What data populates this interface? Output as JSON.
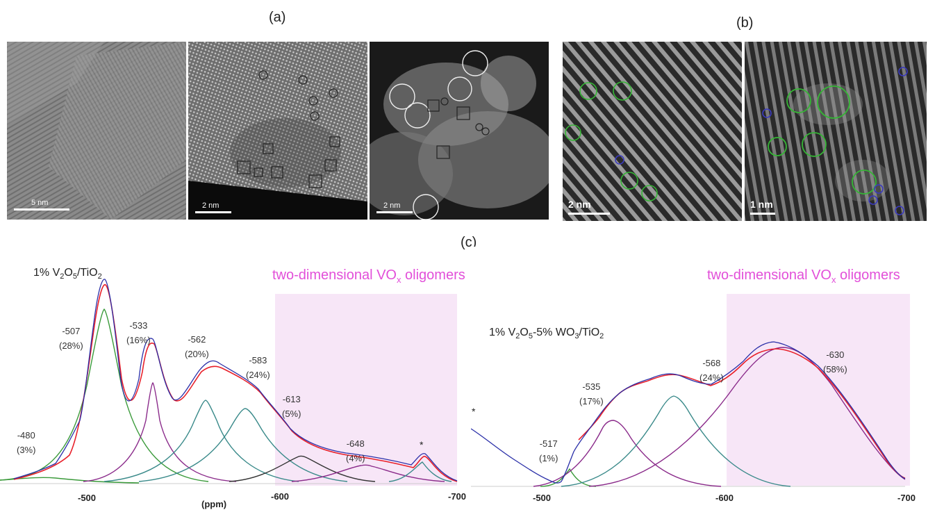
{
  "figure": {
    "panel_a_label": "(a)",
    "panel_b_label": "(b)",
    "panel_c_label": "(c)"
  },
  "panel_a": {
    "images": [
      {
        "name": "hrtem-image",
        "scalebar": "5 nm"
      },
      {
        "name": "haadf-image-1",
        "scalebar": "2 nm"
      },
      {
        "name": "haadf-image-2",
        "scalebar": "2 nm"
      }
    ]
  },
  "panel_b": {
    "images": [
      {
        "name": "haadf-image-3",
        "scalebar": "2 nm"
      },
      {
        "name": "haadf-image-4",
        "scalebar": "1 nm"
      }
    ]
  },
  "spectra": {
    "left": {
      "title_prefix": "1% V",
      "title_mid": "O",
      "title_suffix": "/TiO",
      "sub_2": "2",
      "sub_5": "5",
      "region_label": "two-dimensional VO",
      "region_sub": "x",
      "region_label_end": " oligomers",
      "peaks": [
        {
          "shift": "-480",
          "share": "(3%)"
        },
        {
          "shift": "-507",
          "share": "(28%)"
        },
        {
          "shift": "-533",
          "share": "(16%)"
        },
        {
          "shift": "-562",
          "share": "(20%)"
        },
        {
          "shift": "-583",
          "share": "(24%)"
        },
        {
          "shift": "-613",
          "share": "(5%)"
        },
        {
          "shift": "-648",
          "share": "(4%)"
        }
      ],
      "star": "*",
      "ticks": [
        "-500",
        "-600",
        "-700"
      ],
      "xlabel": "(ppm)"
    },
    "right": {
      "title_prefix": "1% V",
      "title_mid": "O",
      "title_mid2": "-5% WO",
      "title_suffix": "/TiO",
      "sub_2": "2",
      "sub_5": "5",
      "sub_3": "3",
      "region_label": "two-dimensional VO",
      "region_sub": "x",
      "region_label_end": " oligomers",
      "peaks": [
        {
          "shift": "-517",
          "share": "(1%)"
        },
        {
          "shift": "-535",
          "share": "(17%)"
        },
        {
          "shift": "-568",
          "share": "(24%)"
        },
        {
          "shift": "-630",
          "share": "(58%)"
        }
      ],
      "star": "*",
      "ticks": [
        "-500",
        "-600",
        "-700"
      ]
    }
  },
  "colors": {
    "experimental": "#2a2fa8",
    "fit": "#e8202a",
    "peak_green": "#3a9a3a",
    "peak_purple": "#8a2a8a",
    "peak_teal": "#3a8a8a",
    "peak_black": "#333333",
    "region": "#f7e6f7",
    "label_magenta": "#e24fd9"
  }
}
